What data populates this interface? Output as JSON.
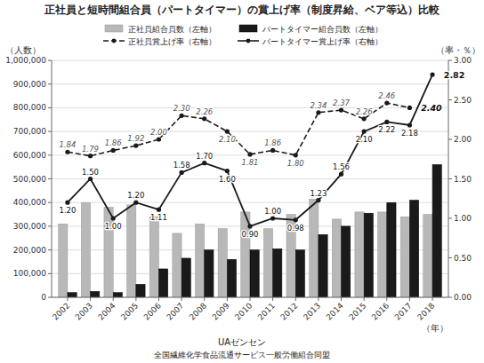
{
  "chart_data": {
    "type": "bar",
    "title": "正社員と短時間組合員（パートタイマー）の賞上げ率（制度昇給、ベア等込）比較",
    "annotations": [
      "UAゼンセン",
      "全国繊維化学食品流通サービス一般労働組合同盟"
    ],
    "x_label": "（年）",
    "y_label": "（人数）",
    "y2_label": "（率・％）",
    "categories": [
      "2002",
      "2003",
      "2004",
      "2005",
      "2006",
      "2007",
      "2008",
      "2009",
      "2010",
      "2011",
      "2012",
      "2013",
      "2014",
      "2015",
      "2016",
      "2017",
      "2018"
    ],
    "series": [
      {
        "name": "正社員組合員数（左軸）",
        "type": "bar",
        "color": "#b8b8b8",
        "values": [
          310000,
          400000,
          380000,
          390000,
          340000,
          270000,
          310000,
          290000,
          360000,
          290000,
          350000,
          415000,
          330000,
          360000,
          360000,
          340000,
          350000
        ]
      },
      {
        "name": "パートタイマー組合員数（左軸）",
        "type": "bar",
        "color": "#1a1a1a",
        "values": [
          20000,
          25000,
          20000,
          55000,
          120000,
          165000,
          200000,
          160000,
          200000,
          205000,
          200000,
          265000,
          300000,
          355000,
          400000,
          410000,
          560000
        ]
      },
      {
        "name": "正社員賞上げ率（右軸）",
        "type": "line",
        "axis": "y2",
        "color": "#1a1a1a",
        "line_style": "dashed",
        "marker": "circle",
        "data_labels": true,
        "values": [
          1.84,
          1.79,
          1.86,
          1.92,
          2.0,
          2.3,
          2.26,
          2.1,
          1.81,
          1.86,
          1.8,
          2.34,
          2.37,
          2.26,
          2.46,
          2.4,
          null
        ],
        "value_labels": [
          "1.84",
          "1.79",
          "1.86",
          "1.92",
          "2.00",
          "2.30",
          "2.26",
          "2.10",
          "1.81",
          "1.86",
          "1.80",
          "2.34",
          "2.37",
          "2.26",
          "2.46",
          "2.40",
          null
        ]
      },
      {
        "name": "パートタイマー賞上げ率（右軸）",
        "type": "line",
        "axis": "y2",
        "color": "#1a1a1a",
        "line_style": "solid",
        "marker": "circle",
        "data_labels": true,
        "values": [
          1.2,
          1.5,
          1.0,
          1.2,
          1.11,
          1.58,
          1.7,
          1.6,
          0.9,
          1.0,
          0.98,
          1.23,
          1.56,
          2.1,
          2.22,
          2.18,
          2.82
        ],
        "value_labels": [
          "1.20",
          "1.50",
          "1.00",
          "1.20",
          "1.11",
          "1.58",
          "1.70",
          "1.60",
          "0.90",
          "1.00",
          "0.98",
          "1.23",
          "1.56",
          "2.10",
          "2.22",
          "2.18",
          "2.82"
        ]
      }
    ],
    "ylim": [
      0,
      1000000
    ],
    "yticks": [
      0,
      {
        "value": 100000,
        "label": "100,000"
      },
      {
        "value": 200000,
        "label": "200,000"
      },
      {
        "value": 300000,
        "label": "300,000"
      },
      {
        "value": 400000,
        "label": "400,000"
      },
      {
        "value": 500000,
        "label": "500,000"
      },
      {
        "value": 600000,
        "label": "600,000"
      },
      {
        "value": 700000,
        "label": "700,000"
      },
      {
        "value": 800000,
        "label": "800,000"
      },
      {
        "value": 900000,
        "label": "900,000"
      },
      {
        "value": 1000000,
        "label": "1,000,000"
      }
    ],
    "y2lim": [
      0.0,
      3.0
    ],
    "y2ticks": [
      {
        "value": 0,
        "label": "0.00"
      },
      {
        "value": 0.5,
        "label": "0.50"
      },
      {
        "value": 1,
        "label": "1.00"
      },
      {
        "value": 1.5,
        "label": "1.50"
      },
      {
        "value": 2,
        "label": "2.00"
      },
      {
        "value": 2.5,
        "label": "2.50"
      },
      {
        "value": 3,
        "label": "3.00"
      }
    ],
    "grid": true,
    "legend": "top"
  }
}
